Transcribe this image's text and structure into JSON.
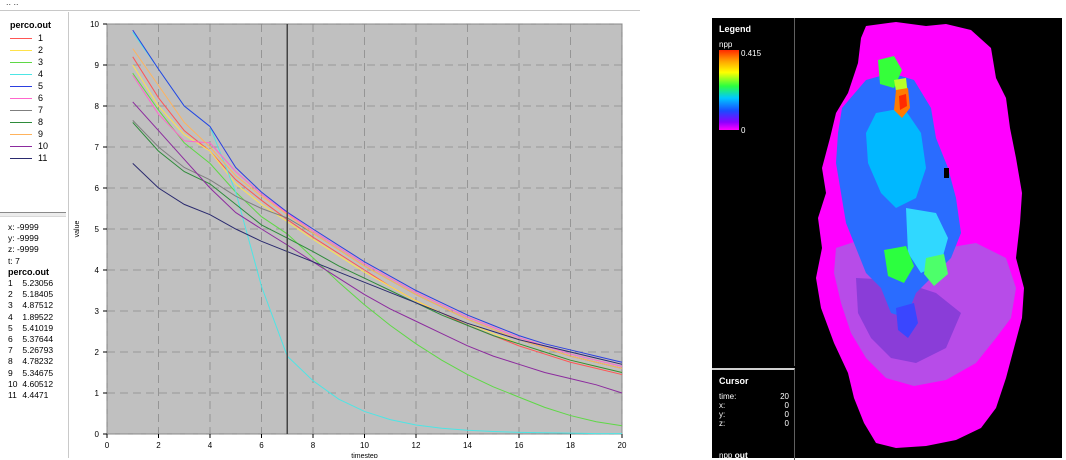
{
  "legend": {
    "title": "perco.out",
    "items": [
      {
        "label": "1",
        "color": "#ff5555"
      },
      {
        "label": "2",
        "color": "#ffe24b"
      },
      {
        "label": "3",
        "color": "#5fd846"
      },
      {
        "label": "4",
        "color": "#4de5e5"
      },
      {
        "label": "5",
        "color": "#2c3fe0"
      },
      {
        "label": "6",
        "color": "#ff66cc"
      },
      {
        "label": "7",
        "color": "#7f7f7f"
      },
      {
        "label": "8",
        "color": "#2e8b3a"
      },
      {
        "label": "9",
        "color": "#ffb35c"
      },
      {
        "label": "10",
        "color": "#8c2b9e"
      },
      {
        "label": "11",
        "color": "#2a2a6e"
      }
    ]
  },
  "readout": {
    "x": "x: -9999",
    "y": "y: -9999",
    "z": "z: -9999",
    "t": "t: 7",
    "title": "perco.out",
    "values": [
      {
        "k": "1",
        "v": "5.23056"
      },
      {
        "k": "2",
        "v": "5.18405"
      },
      {
        "k": "3",
        "v": "4.87512"
      },
      {
        "k": "4",
        "v": "1.89522"
      },
      {
        "k": "5",
        "v": "5.41019"
      },
      {
        "k": "6",
        "v": "5.37644"
      },
      {
        "k": "7",
        "v": "5.26793"
      },
      {
        "k": "8",
        "v": "4.78232"
      },
      {
        "k": "9",
        "v": "5.34675"
      },
      {
        "k": "10",
        "v": "4.60512"
      },
      {
        "k": "11",
        "v": "4.4471"
      }
    ]
  },
  "chart_data": {
    "type": "line",
    "xlabel": "timestep",
    "ylabel": "value",
    "xlim": [
      0,
      20
    ],
    "ylim": [
      0,
      10
    ],
    "xticks": [
      0,
      2,
      4,
      6,
      8,
      10,
      12,
      14,
      16,
      18,
      20
    ],
    "yticks": [
      0,
      1,
      2,
      3,
      4,
      5,
      6,
      7,
      8,
      9,
      10
    ],
    "cursor_x": 7,
    "grid": true,
    "x": [
      1,
      2,
      3,
      4,
      5,
      6,
      7,
      8,
      9,
      10,
      11,
      12,
      13,
      14,
      15,
      16,
      17,
      18,
      19,
      20
    ],
    "series": [
      {
        "name": "1",
        "values": [
          9.2,
          8.2,
          7.4,
          6.9,
          6.2,
          5.7,
          5.23,
          4.8,
          4.4,
          4.0,
          3.6,
          3.25,
          2.95,
          2.65,
          2.4,
          2.15,
          1.95,
          1.75,
          1.6,
          1.45
        ]
      },
      {
        "name": "2",
        "values": [
          9.0,
          8.0,
          7.3,
          6.9,
          6.1,
          5.6,
          5.18,
          4.75,
          4.35,
          3.95,
          3.6,
          3.25,
          2.95,
          2.7,
          2.45,
          2.2,
          2.0,
          1.8,
          1.65,
          1.5
        ]
      },
      {
        "name": "3",
        "values": [
          8.8,
          7.9,
          7.1,
          6.6,
          5.9,
          5.3,
          4.88,
          4.3,
          3.7,
          3.15,
          2.65,
          2.2,
          1.8,
          1.45,
          1.15,
          0.9,
          0.65,
          0.45,
          0.3,
          0.2
        ]
      },
      {
        "name": "4",
        "values": [
          9.8,
          8.9,
          8.0,
          7.5,
          5.9,
          3.6,
          1.9,
          1.3,
          0.85,
          0.55,
          0.35,
          0.22,
          0.14,
          0.09,
          0.06,
          0.04,
          0.03,
          0.02,
          0.01,
          0.01
        ]
      },
      {
        "name": "5",
        "values": [
          9.85,
          8.9,
          8.0,
          7.5,
          6.5,
          5.9,
          5.41,
          5.0,
          4.6,
          4.2,
          3.85,
          3.5,
          3.2,
          2.9,
          2.65,
          2.4,
          2.2,
          2.05,
          1.9,
          1.75
        ]
      },
      {
        "name": "6",
        "values": [
          8.75,
          7.8,
          7.15,
          7.1,
          6.4,
          5.85,
          5.38,
          4.95,
          4.55,
          4.15,
          3.8,
          3.45,
          3.15,
          2.85,
          2.6,
          2.35,
          2.15,
          1.95,
          1.8,
          1.65
        ]
      },
      {
        "name": "7",
        "values": [
          7.65,
          7.0,
          6.5,
          6.2,
          5.8,
          5.5,
          5.27,
          4.9,
          4.5,
          4.1,
          3.75,
          3.4,
          3.1,
          2.8,
          2.55,
          2.3,
          2.1,
          1.9,
          1.75,
          1.6
        ]
      },
      {
        "name": "8",
        "values": [
          7.6,
          6.9,
          6.4,
          6.1,
          5.6,
          5.1,
          4.78,
          4.45,
          4.1,
          3.8,
          3.5,
          3.2,
          2.9,
          2.65,
          2.4,
          2.2,
          2.0,
          1.8,
          1.65,
          1.5
        ]
      },
      {
        "name": "9",
        "values": [
          9.4,
          8.5,
          7.6,
          7.0,
          6.3,
          5.8,
          5.35,
          4.9,
          4.5,
          4.1,
          3.75,
          3.4,
          3.1,
          2.8,
          2.55,
          2.3,
          2.1,
          1.9,
          1.75,
          1.6
        ]
      },
      {
        "name": "10",
        "values": [
          8.1,
          7.4,
          6.7,
          6.0,
          5.4,
          5.0,
          4.61,
          4.2,
          3.8,
          3.4,
          3.05,
          2.75,
          2.45,
          2.15,
          1.9,
          1.7,
          1.5,
          1.35,
          1.2,
          1.0
        ]
      },
      {
        "name": "11",
        "values": [
          6.6,
          6.0,
          5.6,
          5.35,
          5.0,
          4.7,
          4.45,
          4.2,
          3.95,
          3.7,
          3.45,
          3.2,
          2.95,
          2.7,
          2.5,
          2.3,
          2.15,
          2.0,
          1.85,
          1.7
        ]
      }
    ]
  },
  "map": {
    "legend_title": "Legend",
    "variable": "npp",
    "max_label": "0.415",
    "min_label": "0",
    "cursor_title": "Cursor",
    "cursor_time_label": "time:",
    "cursor_time": "20",
    "cursor_x_label": "x:",
    "cursor_x": "0",
    "cursor_y_label": "y:",
    "cursor_y": "0",
    "cursor_z_label": "z:",
    "cursor_z": "0",
    "npp_label": "npp",
    "npp_value": "out"
  },
  "colors": {
    "plot_bg": "#c0c0c0",
    "grid": "#8a8a8a",
    "map_bg": "#000000",
    "magenta": "#ff00ff"
  }
}
